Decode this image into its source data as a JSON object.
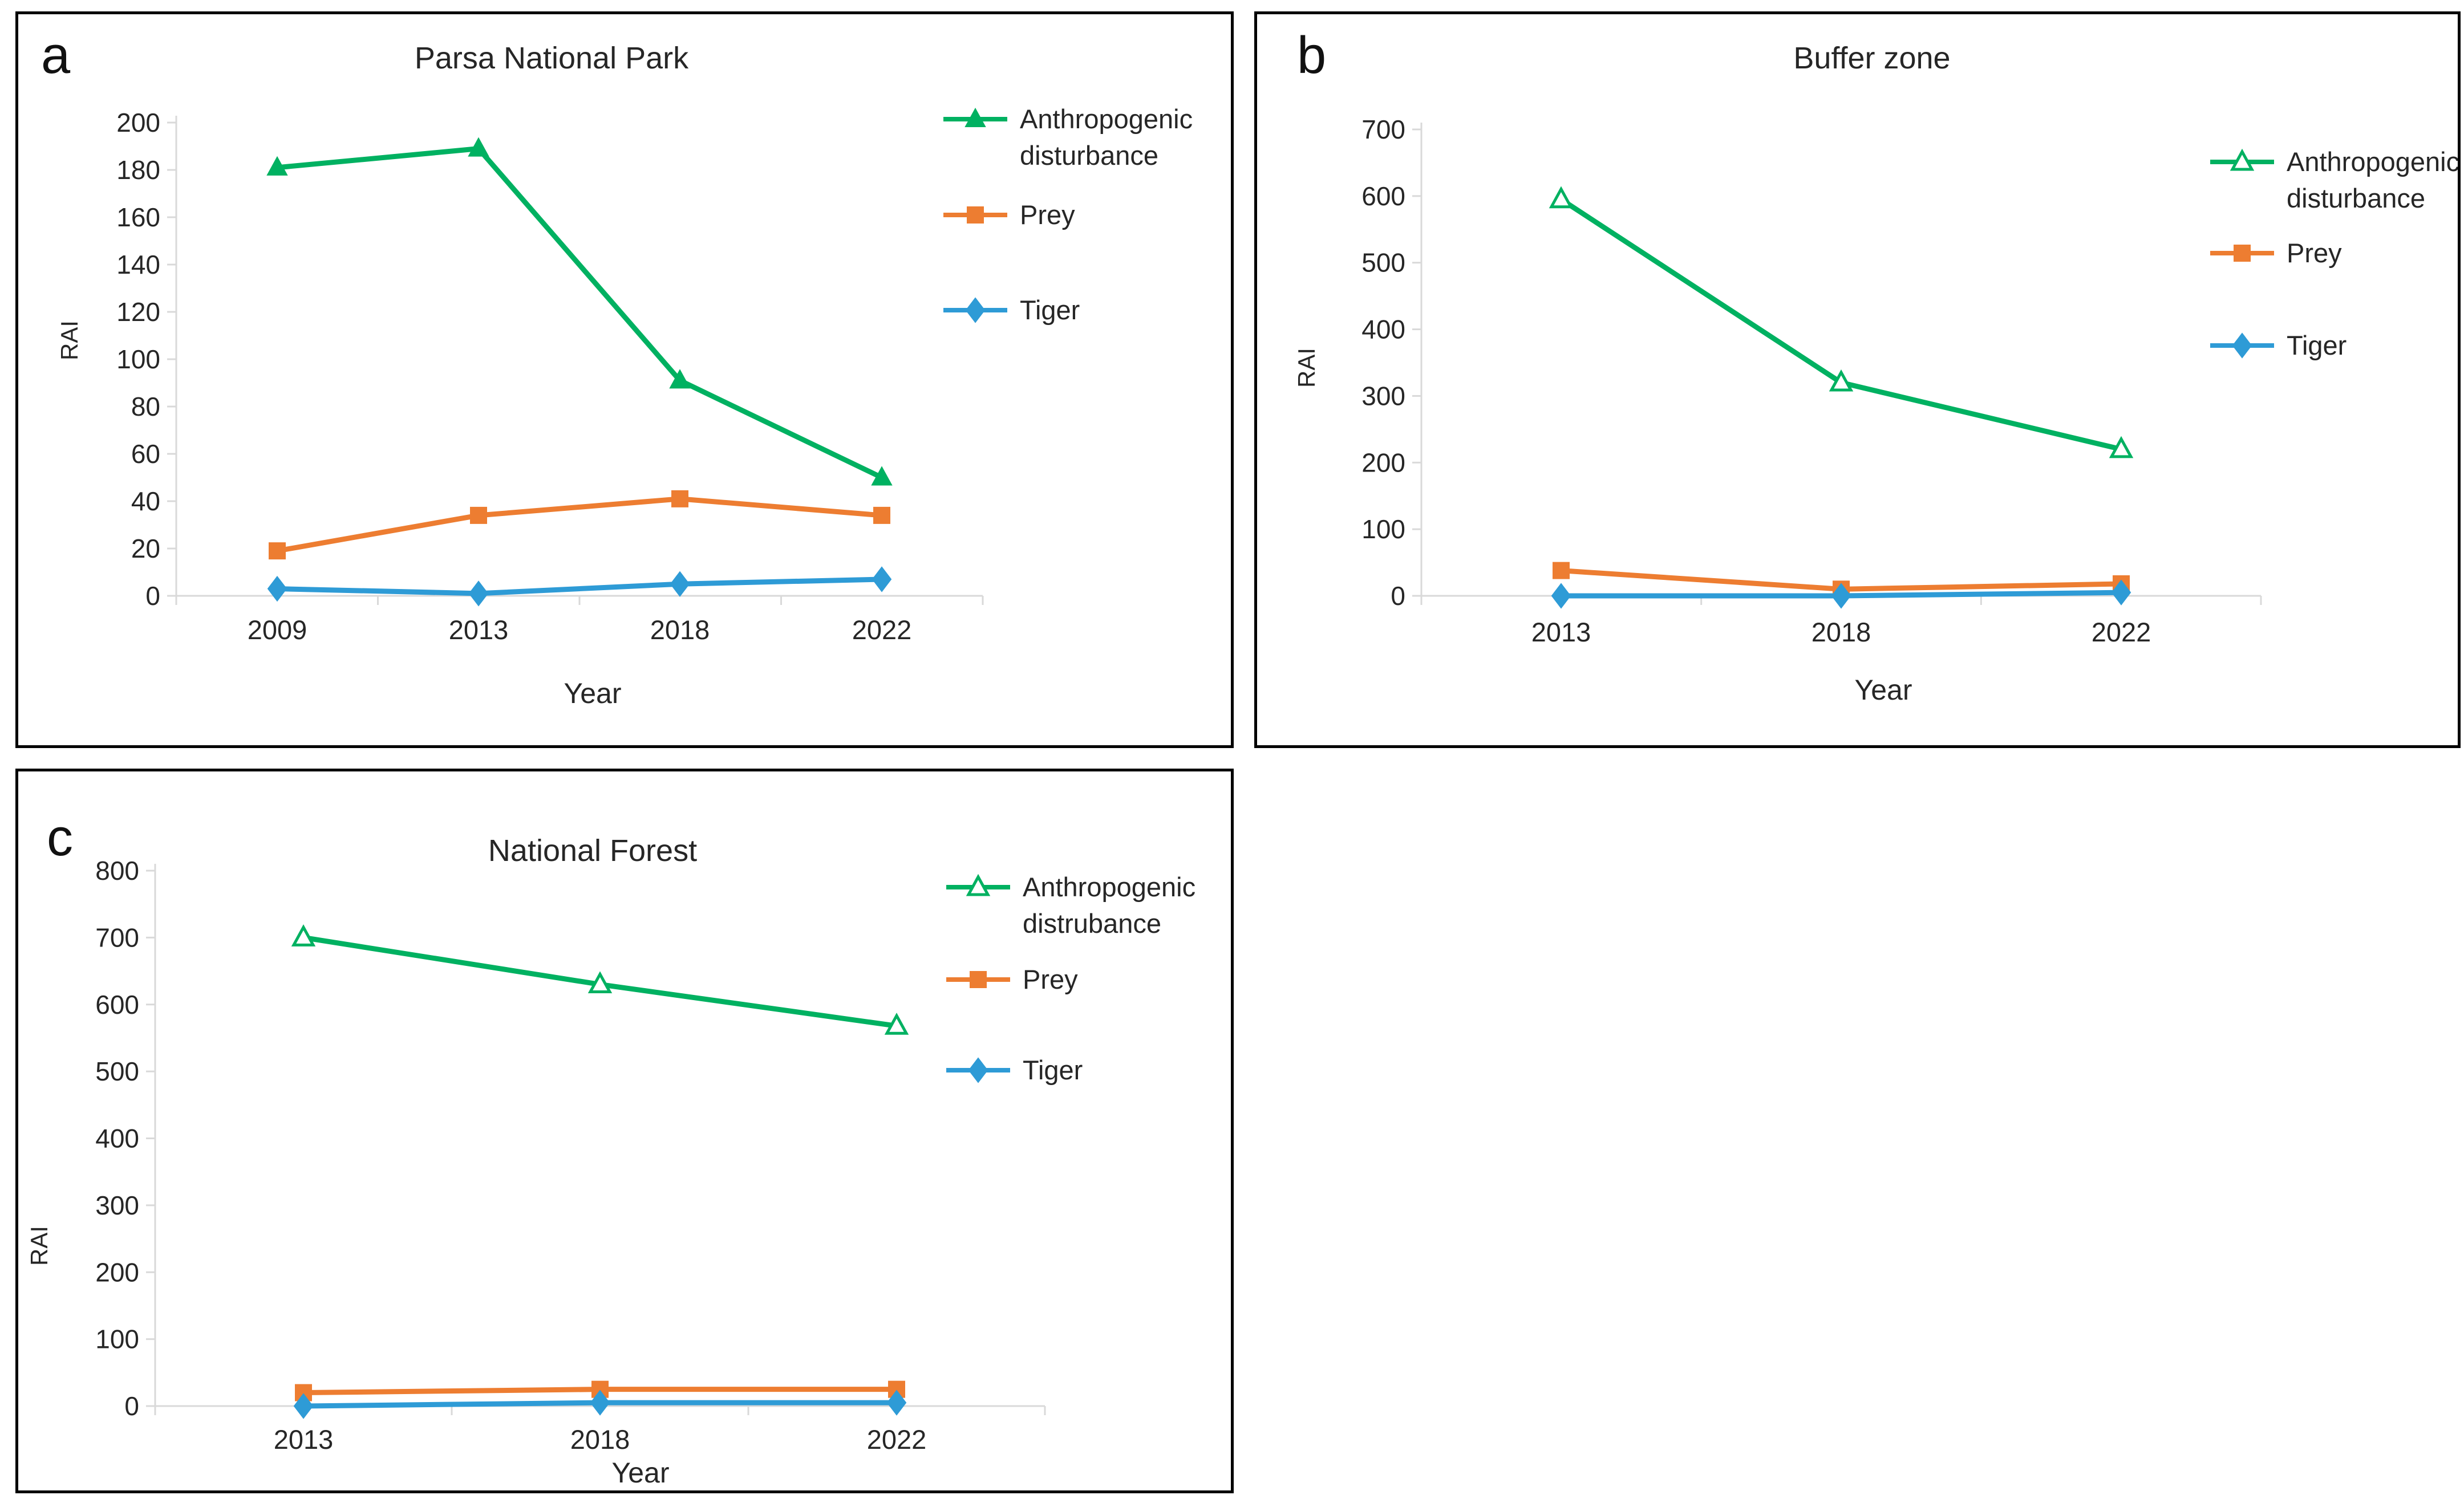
{
  "figure": {
    "background": "#ffffff"
  },
  "colors": {
    "anthropogenic": "#00B161",
    "prey": "#ED7D31",
    "tiger": "#2E9BD6",
    "axis": "#D9D9D9",
    "text": "#262626"
  },
  "chart_data": [
    {
      "id": "a",
      "type": "line",
      "panel_label": "a",
      "title": "Parsa National Park",
      "xlabel": "Year",
      "ylabel": "RAI",
      "categories": [
        "2009",
        "2013",
        "2018",
        "2022"
      ],
      "ylim": [
        0,
        200
      ],
      "ystep": 20,
      "grid": false,
      "legend_position": "right",
      "series": [
        {
          "name": "Anthropogenic disturbance",
          "legend_lines": [
            "Anthropogenic",
            "disturbance"
          ],
          "color_key": "anthropogenic",
          "marker": "triangle",
          "marker_fill": "filled",
          "values": [
            181,
            189,
            91,
            50
          ]
        },
        {
          "name": "Prey",
          "legend_lines": [
            "Prey"
          ],
          "color_key": "prey",
          "marker": "square",
          "marker_fill": "filled",
          "values": [
            19,
            34,
            41,
            34
          ]
        },
        {
          "name": "Tiger",
          "legend_lines": [
            "Tiger"
          ],
          "color_key": "tiger",
          "marker": "diamond",
          "marker_fill": "filled",
          "values": [
            3,
            1,
            5,
            7
          ]
        }
      ]
    },
    {
      "id": "b",
      "type": "line",
      "panel_label": "b",
      "title": "Buffer zone",
      "xlabel": "Year",
      "ylabel": "RAI",
      "categories": [
        "2013",
        "2018",
        "2022"
      ],
      "ylim": [
        0,
        700
      ],
      "ystep": 100,
      "grid": false,
      "legend_position": "right",
      "series": [
        {
          "name": "Anthropogenic disturbance",
          "legend_lines": [
            "Anthropogenic",
            "disturbance"
          ],
          "color_key": "anthropogenic",
          "marker": "triangle",
          "marker_fill": "open",
          "values": [
            595,
            320,
            220
          ]
        },
        {
          "name": "Prey",
          "legend_lines": [
            "Prey"
          ],
          "color_key": "prey",
          "marker": "square",
          "marker_fill": "filled",
          "values": [
            38,
            10,
            18
          ]
        },
        {
          "name": "Tiger",
          "legend_lines": [
            "Tiger"
          ],
          "color_key": "tiger",
          "marker": "diamond",
          "marker_fill": "filled",
          "values": [
            0,
            0,
            5
          ]
        }
      ]
    },
    {
      "id": "c",
      "type": "line",
      "panel_label": "c",
      "title": "National Forest",
      "xlabel": "Year",
      "ylabel": "RAI",
      "categories": [
        "2013",
        "2018",
        "2022"
      ],
      "ylim": [
        0,
        800
      ],
      "ystep": 100,
      "grid": false,
      "legend_position": "right",
      "series": [
        {
          "name": "Anthropogenic distrubance",
          "legend_lines": [
            "Anthropogenic",
            "distrubance"
          ],
          "color_key": "anthropogenic",
          "marker": "triangle",
          "marker_fill": "open",
          "values": [
            700,
            630,
            568
          ]
        },
        {
          "name": "Prey",
          "legend_lines": [
            "Prey"
          ],
          "color_key": "prey",
          "marker": "square",
          "marker_fill": "filled",
          "values": [
            20,
            25,
            25
          ]
        },
        {
          "name": "Tiger",
          "legend_lines": [
            "Tiger"
          ],
          "color_key": "tiger",
          "marker": "diamond",
          "marker_fill": "filled",
          "values": [
            0,
            5,
            5
          ]
        }
      ]
    }
  ]
}
